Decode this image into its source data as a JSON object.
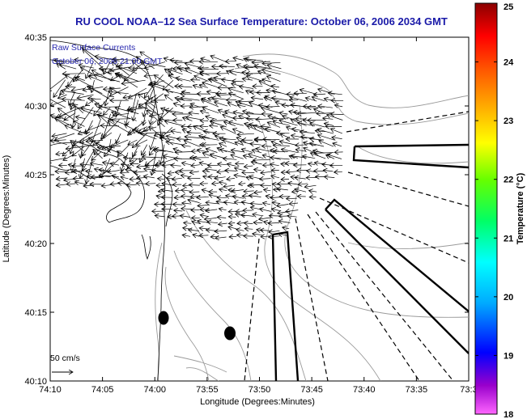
{
  "map": {
    "title": "RU COOL  NOAA–12  Sea Surface Temperature:  October 06, 2006 2034 GMT",
    "subtitle_line1": "Raw Surface Currents",
    "subtitle_line2": "October 06, 2006 21:00 GMT",
    "xlabel": "Longitude (Degrees:Minutes)",
    "ylabel": "Latitude (Degrees:Minutes)",
    "x_ticks": [
      "74:10",
      "74:05",
      "74:00",
      "73:55",
      "73:50",
      "73:45",
      "73:40",
      "73:35",
      "73:3"
    ],
    "y_ticks": [
      "40:35",
      "40:30",
      "40:25",
      "40:20",
      "40:15",
      "40:10"
    ],
    "scale_label": "50 cm/s"
  },
  "colorbar": {
    "label": "Temperature (°C)",
    "ticks": [
      "25",
      "24",
      "23",
      "22",
      "21",
      "20",
      "19",
      "18"
    ],
    "range": [
      18,
      25
    ],
    "colors": [
      "#ff66ff",
      "#9900cc",
      "#0000ff",
      "#00aaff",
      "#00ffff",
      "#00ff66",
      "#66ff00",
      "#ffff00",
      "#ffaa00",
      "#ff5500",
      "#ff0000",
      "#8b0000"
    ]
  }
}
